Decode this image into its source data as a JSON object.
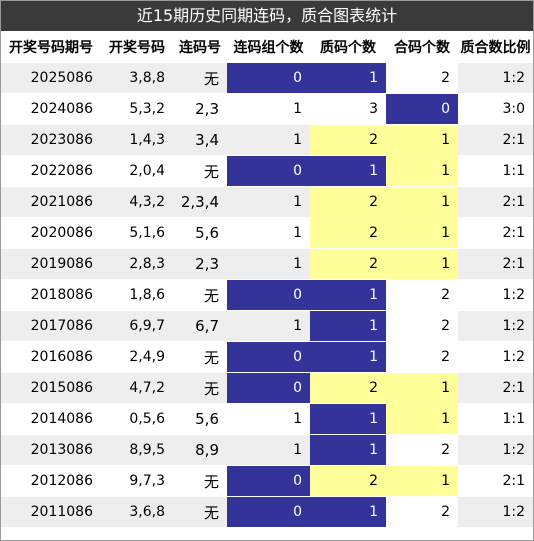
{
  "title": "近15期历史同期连码，质合图表统计",
  "headers": [
    "开奖号码期号",
    "开奖号码",
    "连码号",
    "连码组个数",
    "质码个数",
    "合码个数",
    "质合数比例"
  ],
  "colors": {
    "blue": "#333399",
    "yellow": "#ffff99",
    "white": "#ffffff"
  },
  "rows": [
    {
      "period": "2025086",
      "numbers": "3,8,8",
      "lian": "无",
      "lian_count": "0",
      "zhi": "1",
      "he": "2",
      "ratio": "1:2",
      "c_lian": "blue",
      "c_zhi": "blue",
      "c_he": "white"
    },
    {
      "period": "2024086",
      "numbers": "5,3,2",
      "lian": "2,3",
      "lian_count": "1",
      "zhi": "3",
      "he": "0",
      "ratio": "3:0",
      "c_lian": "",
      "c_zhi": "",
      "c_he": "blue"
    },
    {
      "period": "2023086",
      "numbers": "1,4,3",
      "lian": "3,4",
      "lian_count": "1",
      "zhi": "2",
      "he": "1",
      "ratio": "2:1",
      "c_lian": "",
      "c_zhi": "yellow",
      "c_he": "yellow"
    },
    {
      "period": "2022086",
      "numbers": "2,0,4",
      "lian": "无",
      "lian_count": "0",
      "zhi": "1",
      "he": "1",
      "ratio": "1:1",
      "c_lian": "blue",
      "c_zhi": "blue",
      "c_he": "yellow"
    },
    {
      "period": "2021086",
      "numbers": "4,3,2",
      "lian": "2,3,4",
      "lian_count": "1",
      "zhi": "2",
      "he": "1",
      "ratio": "2:1",
      "c_lian": "",
      "c_zhi": "yellow",
      "c_he": "yellow"
    },
    {
      "period": "2020086",
      "numbers": "5,1,6",
      "lian": "5,6",
      "lian_count": "1",
      "zhi": "2",
      "he": "1",
      "ratio": "2:1",
      "c_lian": "",
      "c_zhi": "yellow",
      "c_he": "yellow"
    },
    {
      "period": "2019086",
      "numbers": "2,8,3",
      "lian": "2,3",
      "lian_count": "1",
      "zhi": "2",
      "he": "1",
      "ratio": "2:1",
      "c_lian": "",
      "c_zhi": "yellow",
      "c_he": "yellow"
    },
    {
      "period": "2018086",
      "numbers": "1,8,6",
      "lian": "无",
      "lian_count": "0",
      "zhi": "1",
      "he": "2",
      "ratio": "1:2",
      "c_lian": "blue",
      "c_zhi": "blue",
      "c_he": "white"
    },
    {
      "period": "2017086",
      "numbers": "6,9,7",
      "lian": "6,7",
      "lian_count": "1",
      "zhi": "1",
      "he": "2",
      "ratio": "1:2",
      "c_lian": "",
      "c_zhi": "blue",
      "c_he": "white"
    },
    {
      "period": "2016086",
      "numbers": "2,4,9",
      "lian": "无",
      "lian_count": "0",
      "zhi": "1",
      "he": "2",
      "ratio": "1:2",
      "c_lian": "blue",
      "c_zhi": "blue",
      "c_he": "white"
    },
    {
      "period": "2015086",
      "numbers": "4,7,2",
      "lian": "无",
      "lian_count": "0",
      "zhi": "2",
      "he": "1",
      "ratio": "2:1",
      "c_lian": "blue",
      "c_zhi": "yellow",
      "c_he": "yellow"
    },
    {
      "period": "2014086",
      "numbers": "0,5,6",
      "lian": "5,6",
      "lian_count": "1",
      "zhi": "1",
      "he": "1",
      "ratio": "1:1",
      "c_lian": "",
      "c_zhi": "blue",
      "c_he": "yellow"
    },
    {
      "period": "2013086",
      "numbers": "8,9,5",
      "lian": "8,9",
      "lian_count": "1",
      "zhi": "1",
      "he": "2",
      "ratio": "1:2",
      "c_lian": "",
      "c_zhi": "blue",
      "c_he": "white"
    },
    {
      "period": "2012086",
      "numbers": "9,7,3",
      "lian": "无",
      "lian_count": "0",
      "zhi": "2",
      "he": "1",
      "ratio": "2:1",
      "c_lian": "blue",
      "c_zhi": "yellow",
      "c_he": "yellow"
    },
    {
      "period": "2011086",
      "numbers": "3,6,8",
      "lian": "无",
      "lian_count": "0",
      "zhi": "1",
      "he": "2",
      "ratio": "1:2",
      "c_lian": "blue",
      "c_zhi": "blue",
      "c_he": "white"
    }
  ]
}
